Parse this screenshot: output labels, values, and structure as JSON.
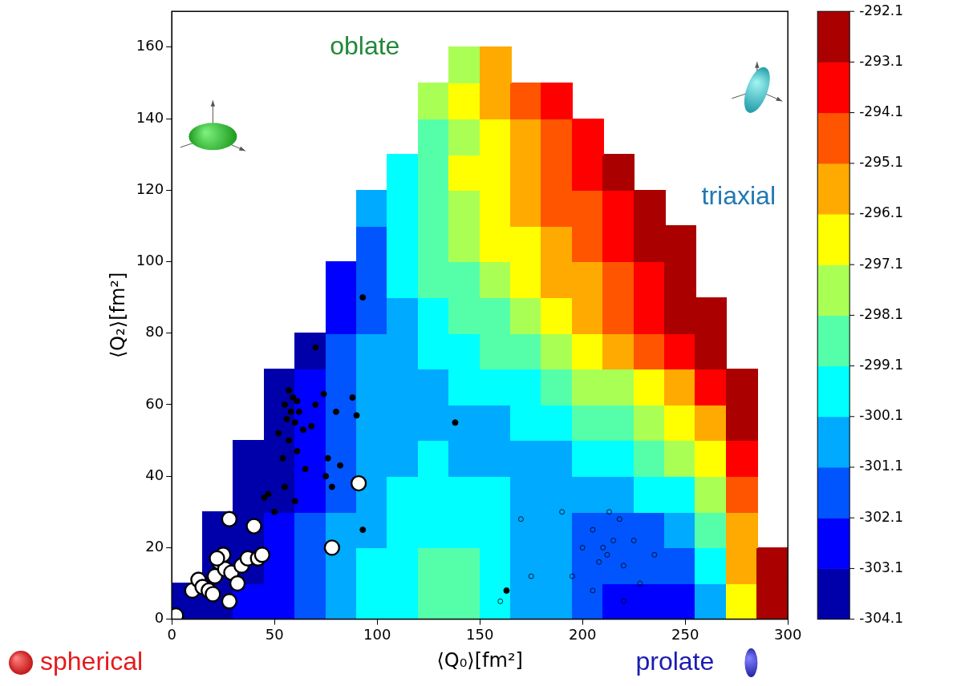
{
  "chart_data": {
    "type": "scatter",
    "xlabel": "⟨Q₀⟩[fm²]",
    "ylabel": "⟨Q₂⟩[fm²]",
    "xlim": [
      0,
      300
    ],
    "ylim": [
      0,
      170
    ],
    "xticks": [
      0,
      50,
      100,
      150,
      200,
      250,
      300
    ],
    "yticks": [
      0,
      20,
      40,
      60,
      80,
      100,
      120,
      140,
      160
    ],
    "grid": false,
    "heatmap": {
      "x": [
        7.5,
        22.5,
        37.5,
        52.5,
        67.5,
        82.5,
        97.5,
        112.5,
        127.5,
        142.5,
        157.5,
        172.5,
        187.5,
        202.5,
        217.5,
        232.5,
        247.5,
        262.5,
        277.5,
        292.5
      ],
      "y": [
        5,
        15,
        25,
        35,
        45,
        55,
        65,
        75,
        85,
        95,
        105,
        115,
        125,
        135,
        145,
        155,
        165
      ],
      "cells": [
        [
          -304.0,
          -303.6,
          -303.0,
          -302.3,
          -301.5,
          -300.7,
          -299.9,
          -299.2,
          -298.7,
          -298.9,
          -299.5,
          -300.3,
          -301.1,
          -301.7,
          -302.2,
          -302.7,
          -302.9,
          -300.6,
          -296.3,
          -293.0
        ],
        [
          null,
          -303.9,
          -303.3,
          -302.6,
          -301.8,
          -300.9,
          -300.1,
          -299.3,
          -298.8,
          -299.0,
          -299.6,
          -300.3,
          -301.0,
          -301.6,
          -301.9,
          -302.0,
          -301.7,
          -300.0,
          -296.0,
          -292.8
        ],
        [
          null,
          -304.0,
          -303.6,
          -302.9,
          -302.0,
          -301.1,
          -300.3,
          -299.6,
          -299.2,
          -299.3,
          -299.7,
          -300.2,
          -300.8,
          -301.2,
          -301.4,
          -301.2,
          -300.6,
          -299.1,
          -295.5,
          null
        ],
        [
          null,
          null,
          -303.9,
          -303.2,
          -302.3,
          -301.4,
          -300.6,
          -300.0,
          -299.7,
          -299.8,
          -300.0,
          -300.3,
          -300.5,
          -300.6,
          -300.5,
          -300.1,
          -299.4,
          -298.0,
          -294.8,
          null
        ],
        [
          null,
          null,
          -304.0,
          -303.6,
          -302.6,
          -301.6,
          -300.8,
          -300.3,
          -300.1,
          -300.2,
          -300.3,
          -300.3,
          -300.2,
          -299.9,
          -299.5,
          -298.9,
          -298.0,
          -296.6,
          -293.8,
          null
        ],
        [
          null,
          null,
          null,
          -303.9,
          -302.9,
          -301.8,
          -301.0,
          -300.5,
          -300.3,
          -300.3,
          -300.2,
          -300.0,
          -299.6,
          -299.1,
          -298.5,
          -297.7,
          -296.7,
          -295.2,
          -292.9,
          null
        ],
        [
          null,
          null,
          null,
          -304.0,
          -303.1,
          -301.9,
          -301.0,
          -300.5,
          -300.2,
          -299.9,
          -299.6,
          -299.2,
          -298.6,
          -298.0,
          -297.2,
          -296.3,
          -295.2,
          -293.6,
          -292.4,
          null
        ],
        [
          null,
          null,
          null,
          null,
          -303.4,
          -302.0,
          -300.9,
          -300.3,
          -299.8,
          -299.4,
          -298.9,
          -298.3,
          -297.6,
          -296.9,
          -296.0,
          -295.1,
          -294.0,
          -292.6,
          null,
          null
        ],
        [
          null,
          null,
          null,
          null,
          null,
          -302.6,
          -301.2,
          -300.2,
          -299.5,
          -298.9,
          -298.2,
          -297.5,
          -296.8,
          -296.0,
          -295.1,
          -294.1,
          -293.0,
          -292.2,
          null,
          null
        ],
        [
          null,
          null,
          null,
          null,
          null,
          -302.6,
          -301.2,
          -300.0,
          -299.1,
          -298.3,
          -297.6,
          -296.9,
          -296.1,
          -295.3,
          -294.4,
          -293.4,
          -292.5,
          null,
          null,
          null
        ],
        [
          null,
          null,
          null,
          null,
          null,
          null,
          -301.3,
          -299.8,
          -298.7,
          -297.8,
          -297.0,
          -296.3,
          -295.5,
          -294.7,
          -293.8,
          -292.9,
          -292.2,
          null,
          null,
          null
        ],
        [
          null,
          null,
          null,
          null,
          null,
          null,
          -300.8,
          -299.3,
          -298.2,
          -297.3,
          -296.5,
          -295.8,
          -295.0,
          -294.2,
          -293.3,
          -292.5,
          null,
          null,
          null,
          null
        ],
        [
          null,
          null,
          null,
          null,
          null,
          null,
          null,
          -299.6,
          -298.2,
          -297.1,
          -296.2,
          -295.3,
          -294.5,
          -293.6,
          -292.8,
          null,
          null,
          null,
          null,
          null
        ],
        [
          null,
          null,
          null,
          null,
          null,
          null,
          null,
          null,
          -298.6,
          -297.3,
          -296.4,
          -295.4,
          -294.5,
          -293.6,
          null,
          null,
          null,
          null,
          null,
          null
        ],
        [
          null,
          null,
          null,
          null,
          null,
          null,
          null,
          null,
          -298.1,
          -296.9,
          -295.8,
          -294.7,
          -293.5,
          null,
          null,
          null,
          null,
          null,
          null,
          null
        ],
        [
          null,
          null,
          null,
          null,
          null,
          null,
          null,
          null,
          null,
          -297.4,
          -295.6,
          null,
          null,
          null,
          null,
          null,
          null,
          null,
          null,
          null
        ],
        [
          null,
          null,
          null,
          null,
          null,
          null,
          null,
          null,
          null,
          null,
          null,
          null,
          null,
          null,
          null,
          null,
          null,
          null,
          null,
          null
        ]
      ],
      "colorbar_lim": [
        -304.1,
        -292.1
      ],
      "colorbar_ticks": [
        -304.1,
        -303.1,
        -302.1,
        -301.1,
        -300.1,
        -299.1,
        -298.1,
        -297.1,
        -296.1,
        -295.1,
        -294.1,
        -293.1,
        -292.1
      ]
    },
    "series": [
      {
        "color": "#000000",
        "marker": "dot",
        "x": [
          57,
          59,
          61,
          55,
          58,
          62,
          56,
          60,
          64,
          52,
          68,
          70,
          57,
          61,
          54,
          65,
          60,
          55,
          50,
          47,
          76,
          75,
          78,
          70,
          93,
          80,
          90,
          93,
          82,
          74,
          88,
          45,
          138,
          163
        ],
        "y": [
          64,
          62,
          61,
          60,
          58,
          58,
          56,
          55,
          53,
          52,
          54,
          60,
          50,
          47,
          45,
          42,
          33,
          37,
          30,
          35,
          45,
          40,
          37,
          76,
          90,
          58,
          57,
          25,
          43,
          63,
          62,
          34,
          55,
          8
        ]
      },
      {
        "color": "#000000",
        "marker": "ring",
        "x": [
          205,
          210,
          212,
          215,
          220,
          208,
          218,
          200,
          225,
          213,
          195,
          228,
          170,
          175,
          160,
          190,
          220,
          235,
          205
        ],
        "y": [
          25,
          20,
          18,
          22,
          15,
          16,
          28,
          20,
          22,
          30,
          12,
          10,
          28,
          12,
          5,
          30,
          5,
          18,
          8
        ]
      },
      {
        "color": "#ffffff",
        "marker": "circle",
        "x": [
          2,
          10,
          13,
          15,
          18,
          20,
          21,
          23,
          25,
          26,
          28,
          29,
          32,
          34,
          37,
          40,
          42,
          44,
          28,
          78,
          91,
          22
        ],
        "y": [
          1,
          8,
          11,
          9,
          8,
          7,
          12,
          16,
          18,
          14,
          28,
          13,
          10,
          15,
          17,
          26,
          17,
          18,
          5,
          20,
          38,
          17
        ]
      }
    ],
    "annotations": [
      {
        "text": "oblate",
        "color": "#23883a"
      },
      {
        "text": "triaxial",
        "color": "#1f78b4"
      },
      {
        "text": "spherical",
        "color": "#e41a1c"
      },
      {
        "text": "prolate",
        "color": "#1c1cb0"
      }
    ]
  }
}
